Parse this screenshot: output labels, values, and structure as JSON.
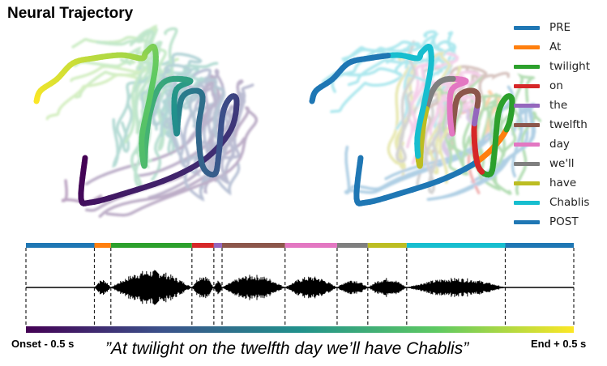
{
  "title": "Neural Trajectory",
  "legend": [
    {
      "label": "PRE",
      "color": "#1f77b4"
    },
    {
      "label": "At",
      "color": "#ff7f0e"
    },
    {
      "label": "twilight",
      "color": "#2ca02c"
    },
    {
      "label": "on",
      "color": "#d62728"
    },
    {
      "label": "the",
      "color": "#9467bd"
    },
    {
      "label": "twelfth",
      "color": "#8c564b"
    },
    {
      "label": "day",
      "color": "#e377c2"
    },
    {
      "label": "we'll",
      "color": "#7f7f7f"
    },
    {
      "label": "have",
      "color": "#bcbd22"
    },
    {
      "label": "Chablis",
      "color": "#17becf"
    },
    {
      "label": "POST",
      "color": "#1f77b4"
    }
  ],
  "timeline": {
    "onset_label": "Onset - 0.5 s",
    "end_label": "End + 0.5 s",
    "sentence": "”At twilight on the twelfth day we’ll have Chablis”",
    "segments": [
      {
        "word": "PRE",
        "start": 0.0,
        "end": 0.125
      },
      {
        "word": "At",
        "start": 0.125,
        "end": 0.155
      },
      {
        "word": "twilight",
        "start": 0.155,
        "end": 0.303
      },
      {
        "word": "on",
        "start": 0.303,
        "end": 0.343
      },
      {
        "word": "the",
        "start": 0.343,
        "end": 0.358
      },
      {
        "word": "twelfth",
        "start": 0.358,
        "end": 0.473
      },
      {
        "word": "day",
        "start": 0.473,
        "end": 0.568
      },
      {
        "word": "we'll",
        "start": 0.568,
        "end": 0.624
      },
      {
        "word": "have",
        "start": 0.624,
        "end": 0.695
      },
      {
        "word": "Chablis",
        "start": 0.695,
        "end": 0.875
      },
      {
        "word": "POST",
        "start": 0.875,
        "end": 1.0
      }
    ]
  },
  "colormap": [
    "#440154",
    "#3b528b",
    "#21918c",
    "#5ec962",
    "#fde725"
  ]
}
